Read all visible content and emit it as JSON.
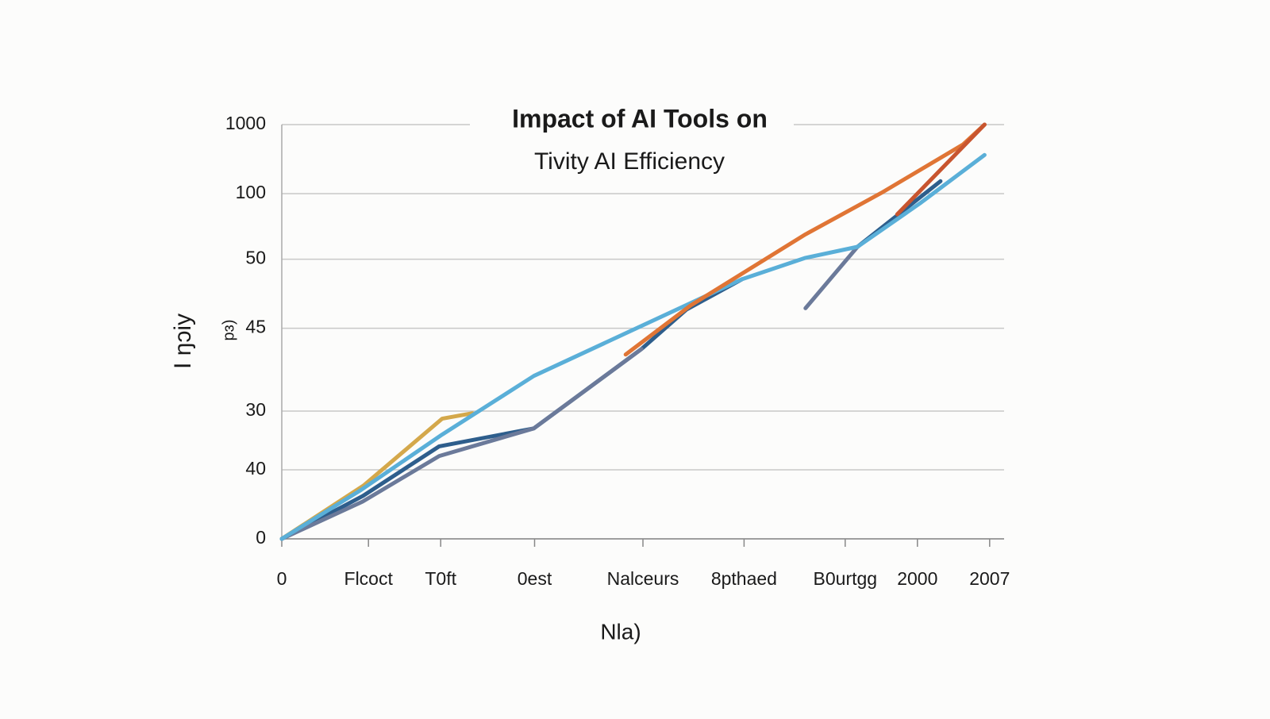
{
  "chart_data": {
    "type": "line",
    "title": "Impact  of AI Tools on",
    "subtitle": "Tivity AI Efficiency",
    "ylabel": "I ŋɔiy",
    "ylabel2": "pɜ)",
    "xlabel": "Nla)",
    "xlim": [
      0,
      100
    ],
    "ylim": [
      0,
      6
    ],
    "xticks": [
      0,
      {
        "value": 12,
        "label": "Flcoct"
      },
      {
        "value": 22,
        "label": "T0ft"
      },
      {
        "value": 35,
        "label": "0est"
      },
      {
        "value": 50,
        "label": "Nalceurs"
      },
      {
        "value": 64,
        "label": "8pthaed"
      },
      {
        "value": 78,
        "label": "B0urtgg"
      },
      {
        "value": 88,
        "label": "2000"
      },
      {
        "value": 98,
        "label": "2007"
      }
    ],
    "yticks": [
      0,
      {
        "value": 1,
        "label": "40"
      },
      {
        "value": 1.85,
        "label": "30"
      },
      {
        "value": 3.05,
        "label": "45"
      },
      {
        "value": 4.05,
        "label": "50"
      },
      {
        "value": 5,
        "label": "100"
      },
      {
        "value": 6,
        "label": "1000"
      }
    ],
    "grid": true,
    "series": [
      {
        "color": "#d4a84b",
        "x": [
          0,
          11.3,
          22.2,
          26.4
        ],
        "values": [
          0,
          0.77,
          1.74,
          1.82
        ]
      },
      {
        "color": "#2e5e8c",
        "x": [
          0,
          11.2,
          21.8,
          34.9,
          49.8,
          56,
          63.7,
          null,
          79.7,
          91.2
        ],
        "values": [
          0,
          0.62,
          1.34,
          1.6,
          2.75,
          3.32,
          3.76,
          null,
          4.23,
          5.18
        ]
      },
      {
        "color": "#6b7a9a",
        "x": [
          0,
          11.2,
          21.8,
          34.9,
          49.8,
          null,
          72.5,
          79.7
        ],
        "values": [
          0,
          0.54,
          1.2,
          1.6,
          2.75,
          null,
          3.34,
          4.23
        ]
      },
      {
        "color": "#5aafd8",
        "x": [
          0,
          11,
          22.2,
          34.9,
          63.7,
          72.5,
          79.7,
          88.5,
          97.3
        ],
        "values": [
          0,
          0.71,
          1.51,
          2.36,
          3.76,
          4.07,
          4.23,
          4.87,
          5.56
        ]
      },
      {
        "color": "#e07535",
        "x": [
          47.6,
          56.6,
          72.5,
          83,
          94.3,
          97.3
        ],
        "values": [
          2.67,
          3.38,
          4.41,
          5.01,
          5.71,
          6
        ]
      },
      {
        "color": "#c8552f",
        "x": [
          85.2,
          97.3
        ],
        "values": [
          4.7,
          6
        ]
      }
    ]
  }
}
